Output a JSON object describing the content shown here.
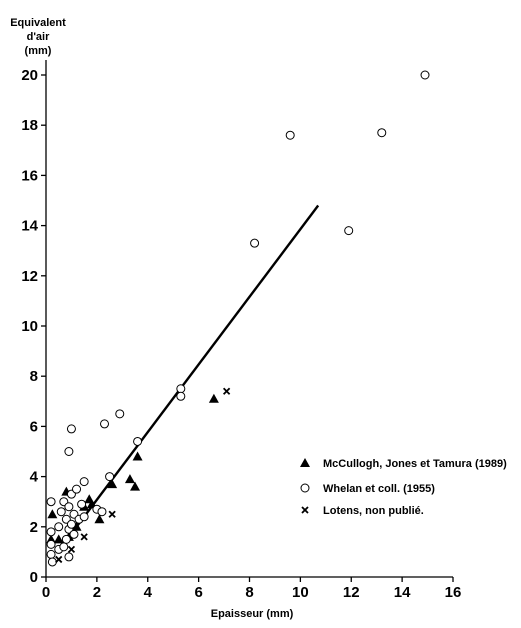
{
  "chart_data": {
    "type": "scatter",
    "xlabel": "Epaisseur (mm)",
    "ylabel_lines": [
      "Equivalent",
      "d'air",
      "(mm)"
    ],
    "xlim": [
      0,
      16
    ],
    "ylim": [
      0,
      20
    ],
    "x_ticks": [
      0,
      2,
      4,
      6,
      8,
      10,
      12,
      14,
      16
    ],
    "y_ticks": [
      0,
      2,
      4,
      6,
      8,
      10,
      12,
      14,
      16,
      18,
      20
    ],
    "grid": false,
    "legend_position": "bottom-right",
    "series": [
      {
        "name": "McCullogh, Jones et Tamura (1989)",
        "marker": "filled-triangle",
        "points": [
          [
            0.2,
            1.5
          ],
          [
            0.25,
            2.5
          ],
          [
            0.5,
            1.5
          ],
          [
            0.8,
            3.4
          ],
          [
            0.9,
            1.6
          ],
          [
            1.2,
            2.0
          ],
          [
            1.5,
            2.8
          ],
          [
            1.7,
            3.1
          ],
          [
            1.8,
            2.9
          ],
          [
            2.1,
            2.3
          ],
          [
            2.6,
            3.7
          ],
          [
            3.3,
            3.9
          ],
          [
            3.5,
            3.6
          ],
          [
            3.6,
            4.8
          ],
          [
            6.6,
            7.1
          ]
        ]
      },
      {
        "name": "Whelan et coll. (1955)",
        "marker": "open-circle",
        "points": [
          [
            0.2,
            3.0
          ],
          [
            0.2,
            1.8
          ],
          [
            0.2,
            1.3
          ],
          [
            0.2,
            0.9
          ],
          [
            0.25,
            0.6
          ],
          [
            0.5,
            1.1
          ],
          [
            0.5,
            2.0
          ],
          [
            0.6,
            2.6
          ],
          [
            0.7,
            3.0
          ],
          [
            0.7,
            1.2
          ],
          [
            0.8,
            1.5
          ],
          [
            0.8,
            2.3
          ],
          [
            0.9,
            1.9
          ],
          [
            0.9,
            0.8
          ],
          [
            0.9,
            2.8
          ],
          [
            1.0,
            3.3
          ],
          [
            1.0,
            2.1
          ],
          [
            1.1,
            1.7
          ],
          [
            1.1,
            2.5
          ],
          [
            1.2,
            3.5
          ],
          [
            1.3,
            2.3
          ],
          [
            1.4,
            2.9
          ],
          [
            1.5,
            2.4
          ],
          [
            1.5,
            3.8
          ],
          [
            2.0,
            2.7
          ],
          [
            2.2,
            2.6
          ],
          [
            2.5,
            4.0
          ],
          [
            0.9,
            5.0
          ],
          [
            1.0,
            5.9
          ],
          [
            2.3,
            6.1
          ],
          [
            2.9,
            6.5
          ],
          [
            3.6,
            5.4
          ],
          [
            5.3,
            7.5
          ],
          [
            5.3,
            7.2
          ],
          [
            8.2,
            13.3
          ],
          [
            9.6,
            17.6
          ],
          [
            11.9,
            13.8
          ],
          [
            13.2,
            17.7
          ],
          [
            14.9,
            20.0
          ]
        ]
      },
      {
        "name": "Lotens, non publié.",
        "marker": "x",
        "points": [
          [
            0.5,
            0.7
          ],
          [
            1.0,
            1.1
          ],
          [
            1.5,
            1.6
          ],
          [
            2.6,
            2.5
          ],
          [
            7.1,
            7.4
          ]
        ]
      }
    ],
    "fit_line": {
      "from": [
        1.2,
        2.0
      ],
      "to": [
        10.7,
        14.8
      ]
    }
  }
}
